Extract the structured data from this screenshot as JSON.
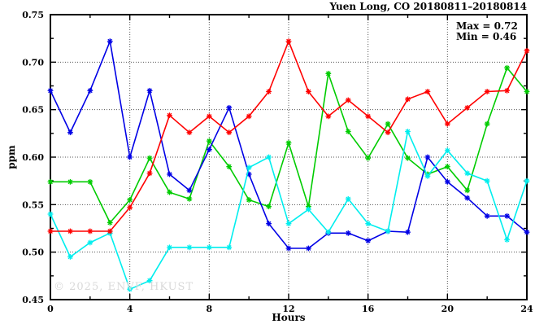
{
  "title": "Yuen Long, CO 20180811–20180814",
  "annotations": {
    "max_label": "Max = 0.72",
    "min_label": "Min = 0.46"
  },
  "watermark": "© 2025, ENVF, HKUST",
  "chart_data": {
    "type": "line",
    "title": "Yuen Long, CO 20180811–20180814",
    "xlabel": "Hours",
    "ylabel": "ppm",
    "xlim": [
      0,
      24
    ],
    "ylim": [
      0.45,
      0.75
    ],
    "grid": "dotted-at-major-ticks",
    "legend_position": "none",
    "x_major_ticks": [
      0,
      4,
      8,
      12,
      16,
      20,
      24
    ],
    "x_major_tick_labels": [
      "0",
      "4",
      "8",
      "12",
      "16",
      "20",
      "24"
    ],
    "x_minor_ticks": [
      2,
      6,
      10,
      14,
      18,
      22
    ],
    "y_major_ticks": [
      0.45,
      0.5,
      0.55,
      0.6,
      0.65,
      0.7,
      0.75
    ],
    "y_major_tick_labels": [
      "0.45",
      "0.50",
      "0.55",
      "0.60",
      "0.65",
      "0.70",
      "0.75"
    ],
    "y_minor_ticks": [
      0.475,
      0.525,
      0.575,
      0.625,
      0.675,
      0.725
    ],
    "x": [
      0,
      1,
      2,
      3,
      4,
      5,
      6,
      7,
      8,
      9,
      10,
      11,
      12,
      13,
      14,
      15,
      16,
      17,
      18,
      19,
      20,
      21,
      22,
      23,
      24
    ],
    "series": [
      {
        "name": "series-green",
        "color": "#00cc00",
        "values": [
          0.574,
          0.574,
          0.574,
          0.531,
          0.555,
          0.599,
          0.563,
          0.556,
          0.617,
          0.59,
          0.555,
          0.548,
          0.615,
          0.548,
          0.688,
          0.627,
          0.599,
          0.635,
          0.599,
          0.582,
          0.59,
          0.565,
          0.635,
          0.694,
          0.669
        ]
      },
      {
        "name": "series-blue",
        "color": "#0000e6",
        "values": [
          0.67,
          0.626,
          0.67,
          0.722,
          0.6,
          0.67,
          0.582,
          0.565,
          0.608,
          0.652,
          0.582,
          0.53,
          0.504,
          0.504,
          0.52,
          0.52,
          0.512,
          0.522,
          0.521,
          0.6,
          0.574,
          0.557,
          0.538,
          0.538,
          0.521
        ]
      },
      {
        "name": "series-cyan",
        "color": "#00eeee",
        "values": [
          0.54,
          0.495,
          0.51,
          0.52,
          0.461,
          0.47,
          0.505,
          0.505,
          0.505,
          0.505,
          0.589,
          0.6,
          0.53,
          0.545,
          0.521,
          0.556,
          0.53,
          0.522,
          0.627,
          0.58,
          0.607,
          0.583,
          0.575,
          0.513,
          0.575
        ]
      },
      {
        "name": "series-red",
        "color": "#ff0000",
        "values": [
          0.522,
          0.522,
          0.522,
          0.522,
          0.547,
          0.583,
          0.644,
          0.626,
          0.643,
          0.626,
          0.643,
          0.669,
          0.722,
          0.669,
          0.643,
          0.66,
          0.643,
          0.626,
          0.661,
          0.669,
          0.635,
          0.652,
          0.669,
          0.67,
          0.712
        ]
      }
    ],
    "stats": {
      "max": 0.72,
      "min": 0.46
    }
  }
}
